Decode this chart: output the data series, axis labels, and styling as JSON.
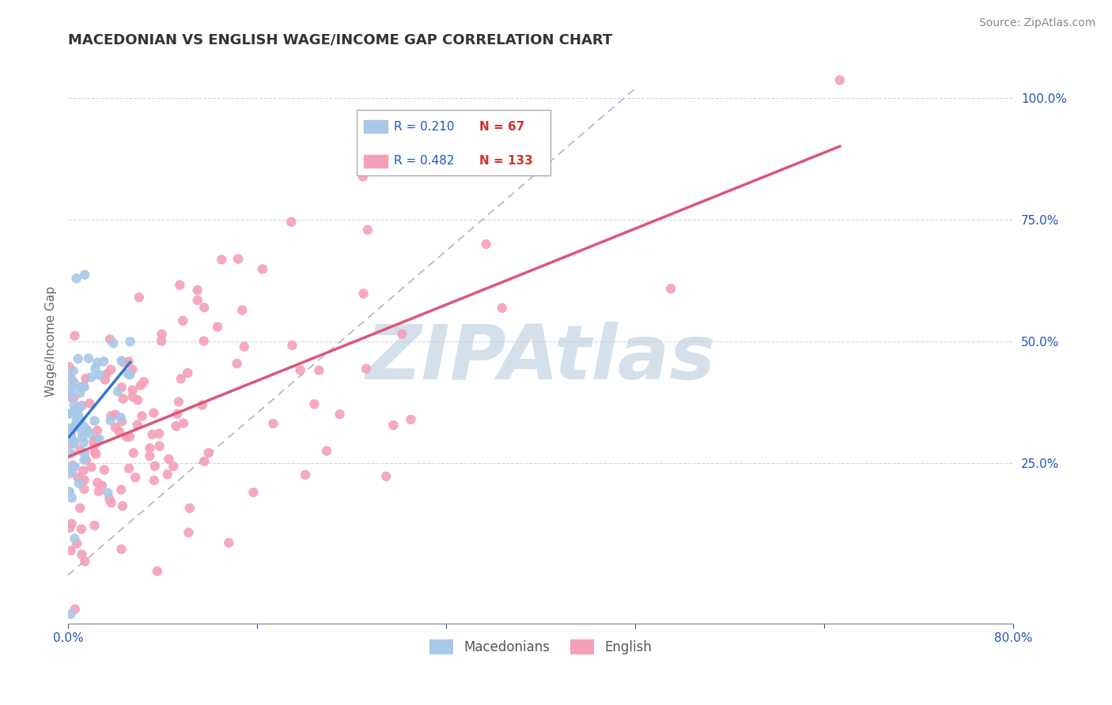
{
  "title": "MACEDONIAN VS ENGLISH WAGE/INCOME GAP CORRELATION CHART",
  "source": "Source: ZipAtlas.com",
  "ylabel": "Wage/Income Gap",
  "xlim": [
    0.0,
    0.8
  ],
  "ylim": [
    -0.08,
    1.08
  ],
  "ytick_positions": [
    0.25,
    0.5,
    0.75,
    1.0
  ],
  "ytick_labels": [
    "25.0%",
    "50.0%",
    "75.0%",
    "100.0%"
  ],
  "mac_R": 0.21,
  "mac_N": 67,
  "eng_R": 0.482,
  "eng_N": 133,
  "mac_color": "#a8c8e8",
  "eng_color": "#f4a0b8",
  "mac_line_color": "#3377cc",
  "eng_line_color": "#dd5577",
  "bg_color": "#ffffff",
  "grid_color": "#cccccc",
  "watermark_text": "ZIPAtlas",
  "watermark_color": "#b8ccdd",
  "legend_R_color": "#2255bb",
  "legend_N_color": "#cc3333"
}
